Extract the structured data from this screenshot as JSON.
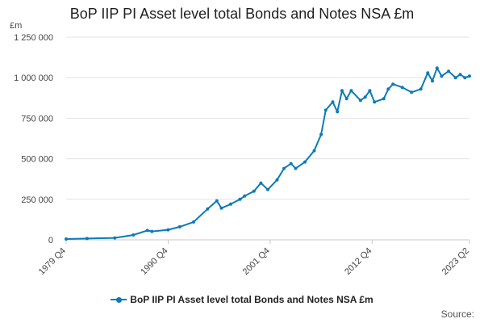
{
  "chart_data": {
    "type": "line",
    "title": "BoP IIP PI Asset level total Bonds and Notes NSA £m",
    "ylabel": "£m",
    "xlabel": "",
    "ylim": [
      0,
      1250000
    ],
    "yticks": [
      0,
      250000,
      500000,
      750000,
      1000000,
      1250000
    ],
    "ytick_labels": [
      "0",
      "250 000",
      "500 000",
      "750 000",
      "1 000 000",
      "1 250 000"
    ],
    "xticks": [
      "1979 Q4",
      "1990 Q4",
      "2001 Q4",
      "2012 Q4",
      "2023 Q2"
    ],
    "grid": "horizontal",
    "legend": "bottom",
    "source_label": "Source:",
    "color": "#0b7ab8",
    "series": [
      {
        "name": "BoP IIP PI Asset level total Bonds and Notes NSA £m",
        "points": [
          [
            "1979 Q4",
            5000
          ],
          [
            "1982 Q1",
            8000
          ],
          [
            "1985 Q1",
            12000
          ],
          [
            "1987 Q1",
            30000
          ],
          [
            "1988 Q3",
            58000
          ],
          [
            "1989 Q1",
            52000
          ],
          [
            "1990 Q4",
            62000
          ],
          [
            "1992 Q1",
            80000
          ],
          [
            "1993 Q3",
            110000
          ],
          [
            "1995 Q1",
            190000
          ],
          [
            "1996 Q1",
            240000
          ],
          [
            "1996 Q3",
            195000
          ],
          [
            "1997 Q3",
            220000
          ],
          [
            "1998 Q3",
            250000
          ],
          [
            "1999 Q1",
            270000
          ],
          [
            "2000 Q1",
            300000
          ],
          [
            "2000 Q4",
            350000
          ],
          [
            "2001 Q3",
            310000
          ],
          [
            "2002 Q3",
            370000
          ],
          [
            "2003 Q2",
            440000
          ],
          [
            "2004 Q1",
            470000
          ],
          [
            "2004 Q3",
            440000
          ],
          [
            "2005 Q3",
            480000
          ],
          [
            "2006 Q3",
            550000
          ],
          [
            "2007 Q2",
            650000
          ],
          [
            "2007 Q4",
            800000
          ],
          [
            "2008 Q3",
            850000
          ],
          [
            "2009 Q1",
            790000
          ],
          [
            "2009 Q3",
            920000
          ],
          [
            "2010 Q1",
            870000
          ],
          [
            "2010 Q3",
            920000
          ],
          [
            "2011 Q3",
            860000
          ],
          [
            "2012 Q1",
            880000
          ],
          [
            "2012 Q3",
            920000
          ],
          [
            "2013 Q1",
            850000
          ],
          [
            "2014 Q1",
            870000
          ],
          [
            "2014 Q3",
            930000
          ],
          [
            "2015 Q1",
            960000
          ],
          [
            "2016 Q1",
            940000
          ],
          [
            "2017 Q1",
            910000
          ],
          [
            "2018 Q1",
            930000
          ],
          [
            "2018 Q4",
            1030000
          ],
          [
            "2019 Q2",
            980000
          ],
          [
            "2019 Q4",
            1060000
          ],
          [
            "2020 Q2",
            1010000
          ],
          [
            "2021 Q1",
            1040000
          ],
          [
            "2021 Q4",
            1000000
          ],
          [
            "2022 Q2",
            1020000
          ],
          [
            "2022 Q4",
            1000000
          ],
          [
            "2023 Q2",
            1010000
          ]
        ]
      }
    ]
  }
}
